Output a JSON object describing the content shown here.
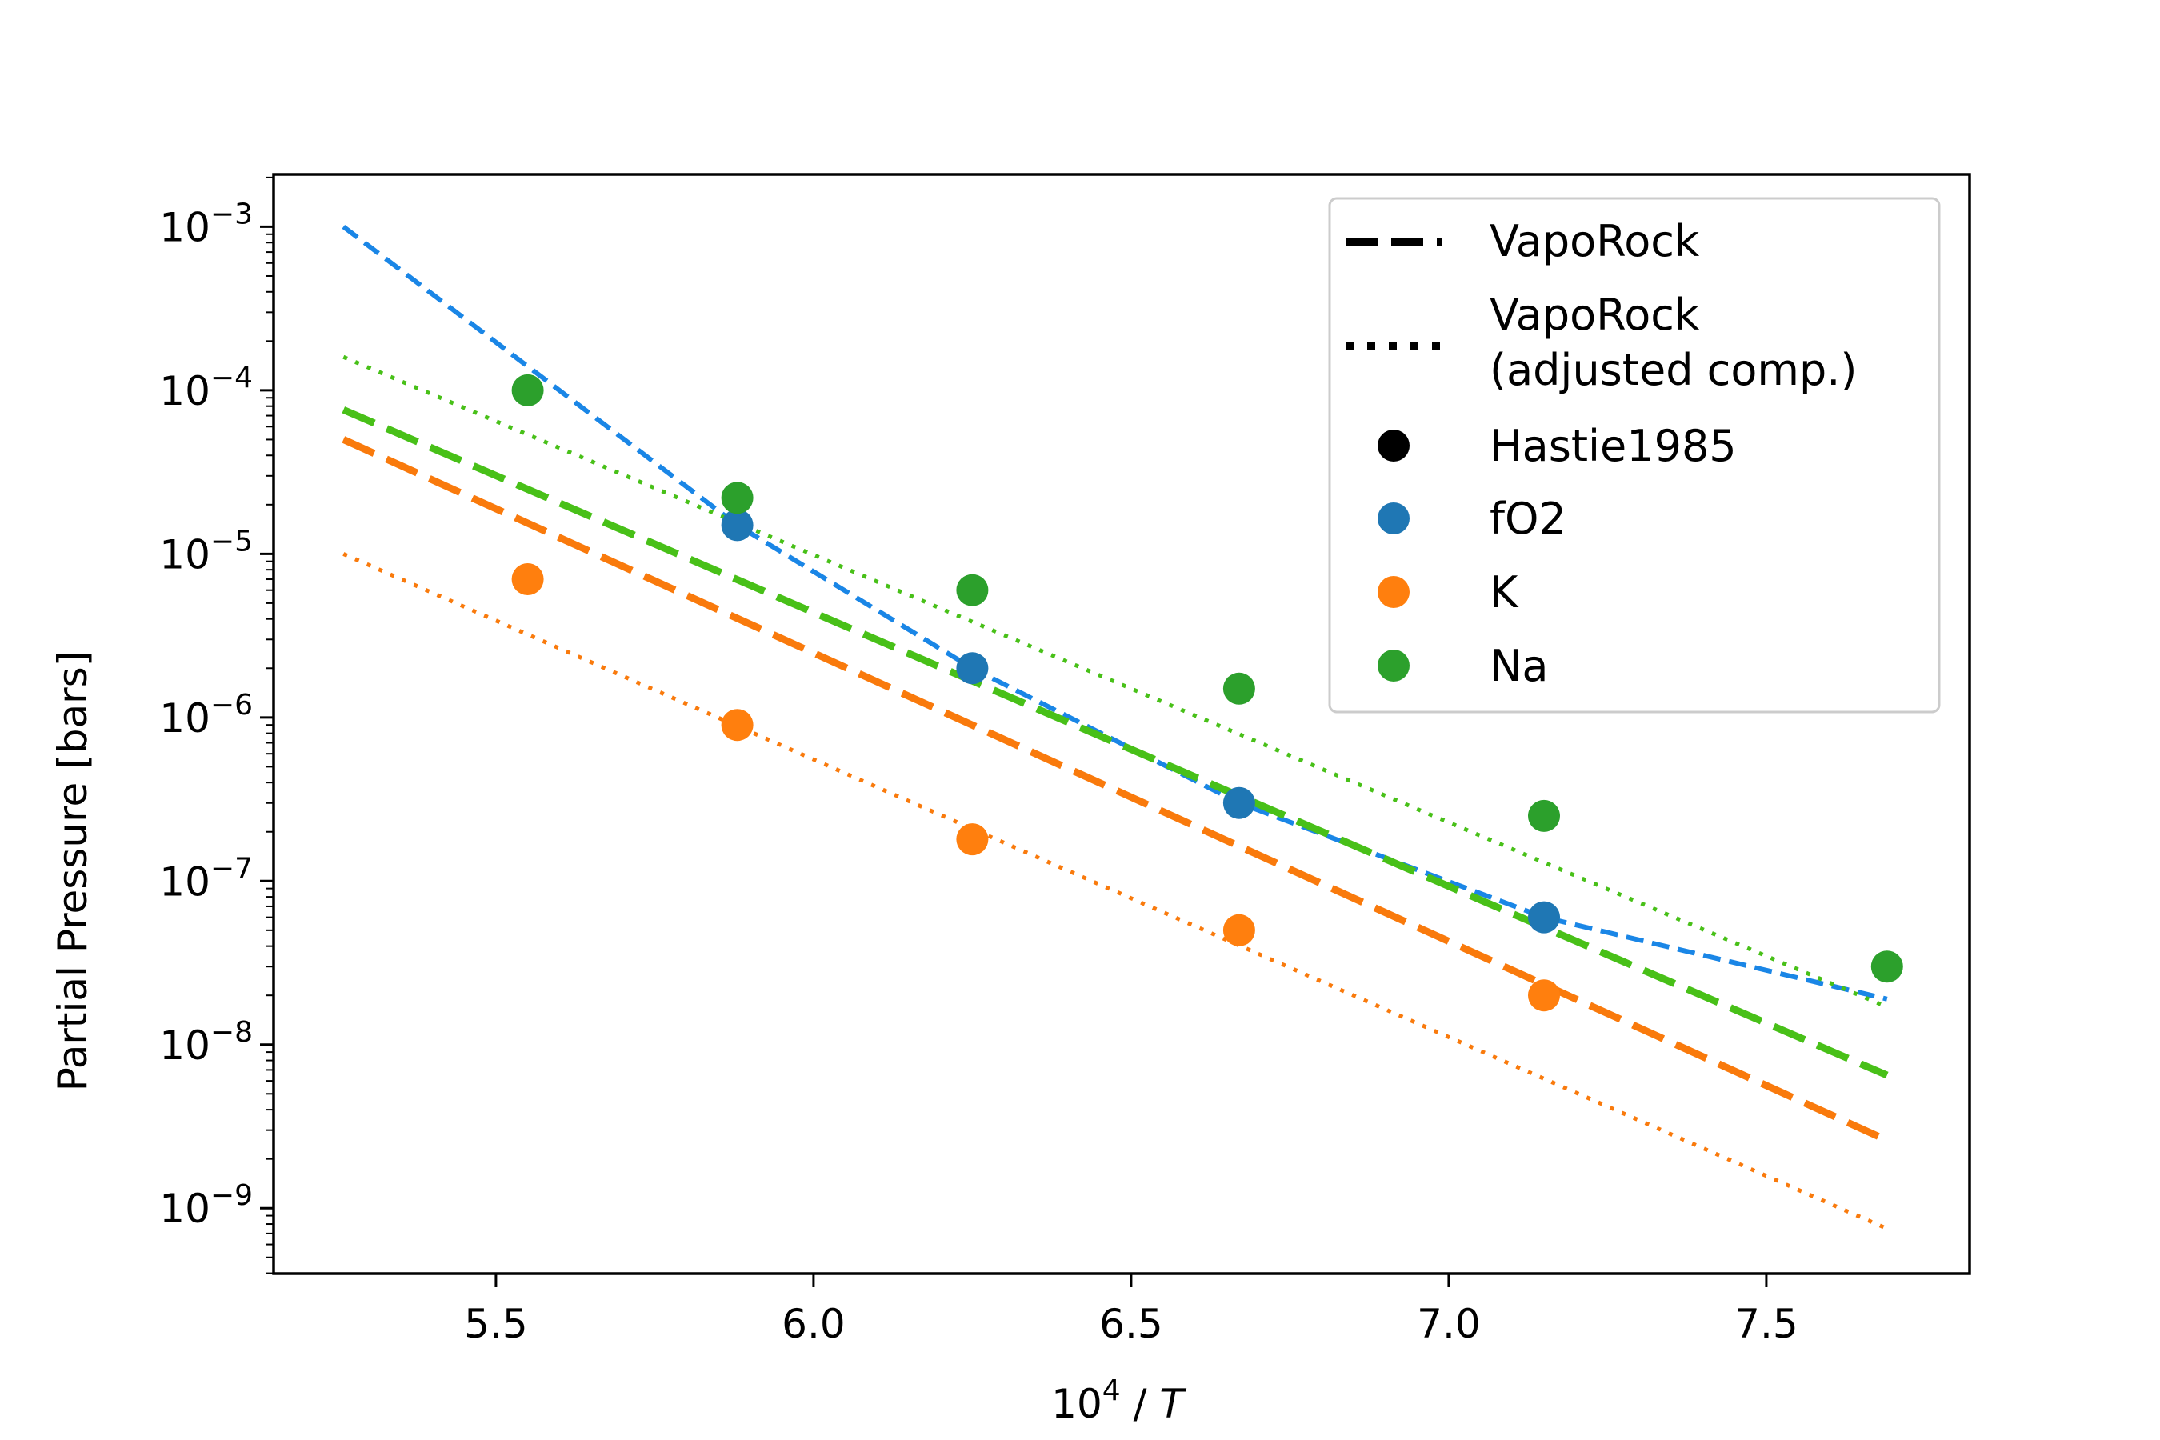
{
  "chart_data": {
    "type": "scatter",
    "xlabel_base": "10",
    "xlabel_exp": "4",
    "xlabel_rest": " / ",
    "xlabel_var": "T",
    "ylabel": "Partial Pressure [bars]",
    "xlim": [
      5.15,
      7.82
    ],
    "ylim_exp": [
      -9.4,
      -2.68
    ],
    "y_scale": "log",
    "x_ticks": [
      5.5,
      6.0,
      6.5,
      7.0,
      7.5
    ],
    "x_tick_labels": [
      "5.5",
      "6.0",
      "6.5",
      "7.0",
      "7.5"
    ],
    "y_ticks": [
      {
        "base": "10",
        "exp": "−3",
        "log": -3
      },
      {
        "base": "10",
        "exp": "−4",
        "log": -4
      },
      {
        "base": "10",
        "exp": "−5",
        "log": -5
      },
      {
        "base": "10",
        "exp": "−6",
        "log": -6
      },
      {
        "base": "10",
        "exp": "−7",
        "log": -7
      },
      {
        "base": "10",
        "exp": "−8",
        "log": -8
      },
      {
        "base": "10",
        "exp": "−9",
        "log": -9
      }
    ],
    "grid": false,
    "legend_position": "top-right",
    "colors": {
      "fO2_points": "#1f77b4",
      "K_points": "#ff7f0e",
      "Na_points": "#2ca02c",
      "fO2_line": "#1a86e6",
      "K_line": "#f97a0c",
      "Na_line": "#48c018"
    },
    "lines": [
      {
        "name": "fO2",
        "style": "dashed-thin",
        "color": "fO2_line",
        "x": [
          5.26,
          5.88,
          6.25,
          6.67,
          7.15,
          7.69
        ],
        "y": [
          0.001,
          1.5e-05,
          2e-06,
          3e-07,
          6e-08,
          1.9e-08
        ]
      },
      {
        "name": "Na",
        "style": "dashed",
        "color": "Na_line",
        "x": [
          5.26,
          7.69
        ],
        "y": [
          7.6e-05,
          6.5e-09
        ]
      },
      {
        "name": "K",
        "style": "dashed",
        "color": "K_line",
        "x": [
          5.26,
          7.69
        ],
        "y": [
          5e-05,
          2.6e-09
        ]
      },
      {
        "name": "Na",
        "style": "dotted",
        "color": "Na_line",
        "x": [
          5.26,
          7.69
        ],
        "y": [
          0.00016,
          1.7e-08
        ]
      },
      {
        "name": "K",
        "style": "dotted",
        "color": "K_line",
        "x": [
          5.26,
          7.69
        ],
        "y": [
          1e-05,
          7.5e-10
        ]
      }
    ],
    "series": [
      {
        "name": "fO2",
        "color": "fO2_points",
        "x": [
          5.88,
          6.25,
          6.67,
          7.15
        ],
        "y": [
          1.5e-05,
          2e-06,
          3e-07,
          6e-08
        ]
      },
      {
        "name": "K",
        "color": "K_points",
        "x": [
          5.55,
          5.88,
          6.25,
          6.67,
          7.15
        ],
        "y": [
          7e-06,
          9e-07,
          1.8e-07,
          5e-08,
          2e-08
        ]
      },
      {
        "name": "Na",
        "color": "Na_points",
        "x": [
          5.55,
          5.88,
          6.25,
          6.67,
          7.15,
          7.69
        ],
        "y": [
          0.0001,
          2.2e-05,
          6e-06,
          1.5e-06,
          2.5e-07,
          3e-08
        ]
      }
    ],
    "legend": [
      {
        "label": "VapoRock",
        "marker": "dashed-line"
      },
      {
        "label_line1": "VapoRock",
        "label_line2": "(adjusted comp.)",
        "marker": "dotted-line"
      },
      {
        "label": "Hastie1985",
        "marker": "dot",
        "color": "#000000"
      },
      {
        "label": "fO2",
        "marker": "dot",
        "color": "#1f77b4"
      },
      {
        "label": "K",
        "marker": "dot",
        "color": "#ff7f0e"
      },
      {
        "label": "Na",
        "marker": "dot",
        "color": "#2ca02c"
      }
    ]
  }
}
